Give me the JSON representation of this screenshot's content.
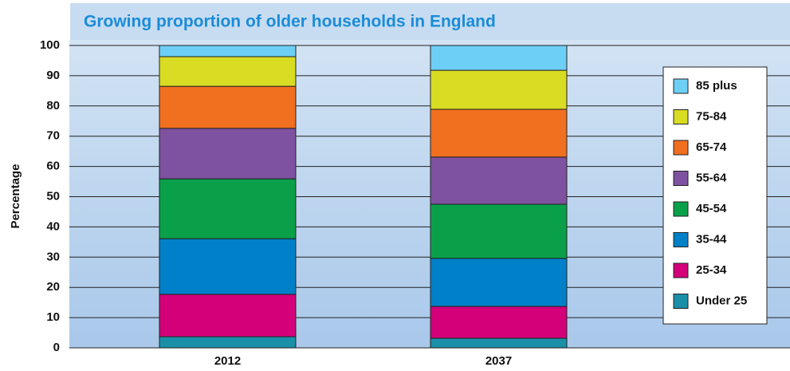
{
  "chart_data": {
    "type": "stacked_bar",
    "title": "Growing proportion of older households in England",
    "y_label": "Percentage",
    "categories": [
      "2012",
      "2037"
    ],
    "series": [
      {
        "name": "Under 25",
        "color": "#1a8fa8",
        "values": [
          3.7,
          3.2
        ]
      },
      {
        "name": "25-34",
        "color": "#d4007a",
        "values": [
          14.0,
          10.5
        ]
      },
      {
        "name": "35-44",
        "color": "#0080c8",
        "values": [
          18.4,
          15.9
        ]
      },
      {
        "name": "45-54",
        "color": "#0aa04a",
        "values": [
          19.8,
          17.9
        ]
      },
      {
        "name": "55-64",
        "color": "#7e52a0",
        "values": [
          16.7,
          15.6
        ]
      },
      {
        "name": "65-74",
        "color": "#f07020",
        "values": [
          13.9,
          15.8
        ]
      },
      {
        "name": "75-84",
        "color": "#d8dc22",
        "values": [
          9.8,
          12.9
        ]
      },
      {
        "name": "85 plus",
        "color": "#6dcff6",
        "values": [
          3.7,
          8.2
        ]
      }
    ],
    "ylim": [
      0,
      100
    ],
    "yticks": [
      0,
      10,
      20,
      30,
      40,
      50,
      60,
      70,
      80,
      90,
      100
    ],
    "grid": true,
    "legend": "right"
  }
}
